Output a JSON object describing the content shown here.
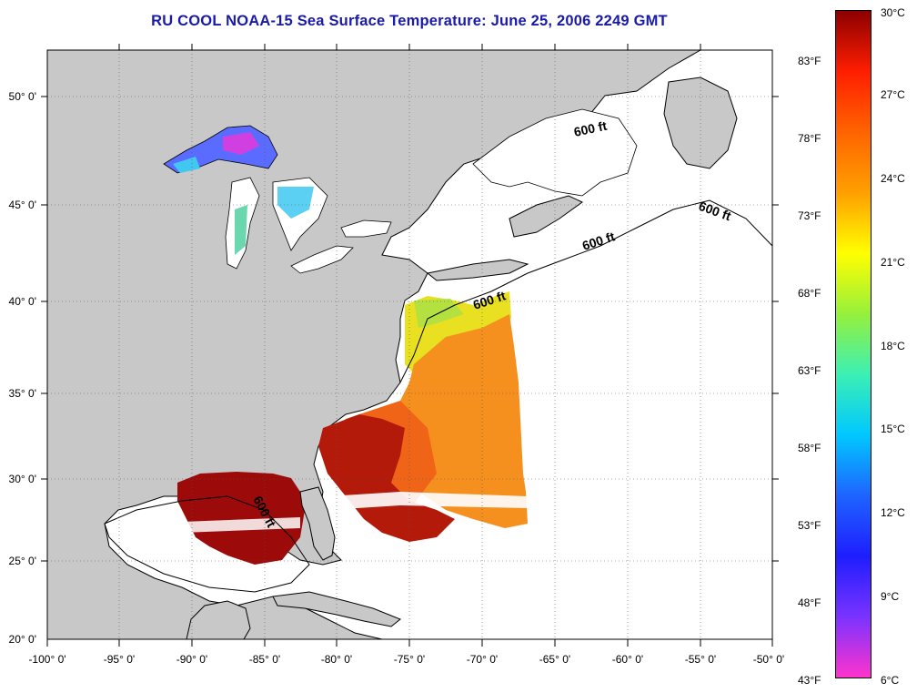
{
  "title": "RU COOL  NOAA-15  Sea Surface Temperature:  June 25, 2006 2249 GMT",
  "map": {
    "lat_labels": [
      "50° 0'",
      "45° 0'",
      "40° 0'",
      "35° 0'",
      "30° 0'",
      "25° 0'",
      "20° 0'"
    ],
    "lon_labels": [
      "-100° 0'",
      "-95° 0'",
      "-90° 0'",
      "-85° 0'",
      "-80° 0'",
      "-75° 0'",
      "-70° 0'",
      "-65° 0'",
      "-60° 0'",
      "-55° 0'",
      "-50° 0'"
    ],
    "contour_labels": [
      "600 ft",
      "600 ft",
      "600 ft",
      "600 ft",
      "600 ft"
    ],
    "colors": {
      "land": "#c8c8c8",
      "water_nodata": "#ffffff",
      "title": "#1a1aa8"
    }
  },
  "colorbar": {
    "fahrenheit_labels": [
      "83°F",
      "78°F",
      "73°F",
      "68°F",
      "63°F",
      "58°F",
      "53°F",
      "48°F",
      "43°F"
    ],
    "celsius_labels": [
      "30°C",
      "27°C",
      "24°C",
      "21°C",
      "18°C",
      "15°C",
      "12°C",
      "9°C",
      "6°C"
    ],
    "range_c": [
      6,
      30
    ],
    "stops": [
      "#ff33cc",
      "#7a33ff",
      "#1e1eff",
      "#1e64ff",
      "#00c8ff",
      "#3cf0b4",
      "#96f03c",
      "#ffff00",
      "#ffa000",
      "#ff6400",
      "#ff1e00",
      "#8c0000"
    ]
  }
}
